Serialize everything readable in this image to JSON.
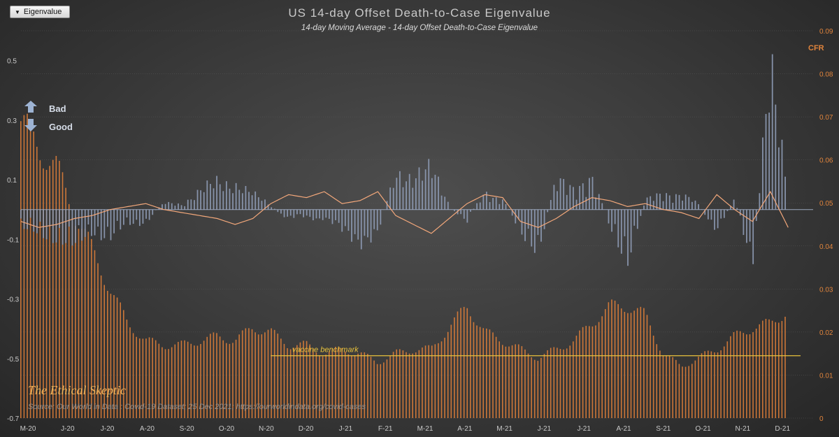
{
  "ui": {
    "dropdown_label": "Eigenvalue",
    "bad_label": "Bad",
    "good_label": "Good",
    "brand": "The Ethical Skeptic",
    "source": "Source: Our World in Data : Covid-19 Dataset; 25 Dec 2021;  https://ourworldindata.org/covid-cases"
  },
  "colors": {
    "eigen_bar": "#8e9bb5",
    "cfr_bar": "#e8823a",
    "moving_avg": "#f2a77a",
    "benchmark": "#e8c23c",
    "arrow": "#9db3d3"
  },
  "chart_data": {
    "type": "bar",
    "title": "US 14-day  Offset Death-to-Case  Eigenvalue",
    "subtitle": "14-day Moving Average - 14-day Offset Death-to-Case Eigenvalue",
    "x_tick_labels": [
      "M-20",
      "J-20",
      "J-20",
      "A-20",
      "S-20",
      "O-20",
      "N-20",
      "D-20",
      "J-21",
      "F-21",
      "M-21",
      "A-21",
      "M-21",
      "J-21",
      "J-21",
      "A-21",
      "S-21",
      "O-21",
      "N-21",
      "D-21"
    ],
    "y_left": {
      "label": "Eigenvalue",
      "ylim": [
        -0.7,
        0.6
      ],
      "ticks": [
        0.5,
        0.3,
        0.1,
        -0.1,
        -0.3,
        -0.5,
        -0.7
      ],
      "tick_labels": [
        "0.5",
        "0.3",
        "0.1",
        "-0.1",
        "-0.3",
        "-0.5",
        "-0.7"
      ]
    },
    "y_right": {
      "label": "CFR",
      "ylim": [
        0,
        0.09
      ],
      "ticks": [
        0.09,
        0.08,
        0.07,
        0.06,
        0.05,
        0.04,
        0.03,
        0.02,
        0.01,
        0
      ],
      "tick_labels": [
        "0.09",
        "0.08",
        "0.07",
        "0.06",
        "0.05",
        "0.04",
        "0.03",
        "0.02",
        "0.01",
        "0"
      ]
    },
    "annotations": [
      {
        "text": "vaccine benchmark",
        "value_cfr": 0.0145
      }
    ],
    "series": [
      {
        "name": "Eigenvalue (bars)",
        "axis": "left",
        "x_month": [
          0,
          0.5,
          1,
          1.5,
          2,
          2.5,
          3,
          3.5,
          4,
          4.5,
          5,
          5.5,
          6,
          6.5,
          7,
          7.5,
          8,
          8.5,
          9,
          9.5,
          10,
          10.5,
          11,
          11.5,
          12,
          12.5,
          13,
          13.5,
          14,
          14.5,
          15,
          15.5,
          16,
          16.5,
          17,
          17.5,
          18,
          18.5,
          19,
          19.5,
          20,
          20.5,
          21,
          21.5
        ],
        "values": [
          -0.05,
          -0.07,
          -0.08,
          -0.1,
          -0.06,
          -0.08,
          -0.04,
          -0.03,
          0.01,
          0.02,
          0.05,
          0.08,
          0.07,
          0.04,
          0.02,
          -0.03,
          -0.02,
          -0.02,
          -0.06,
          -0.09,
          -0.07,
          0.1,
          0.09,
          0.12,
          0.02,
          -0.04,
          0.05,
          0.03,
          -0.07,
          -0.11,
          0.08,
          0.06,
          0.09,
          -0.05,
          -0.14,
          0.02,
          0.05,
          0.04,
          0.01,
          -0.05,
          0.02,
          -0.15,
          0.42,
          0.03
        ]
      },
      {
        "name": "14-day Moving Average",
        "axis": "left",
        "x_month": [
          0,
          0.5,
          1,
          1.5,
          2,
          2.5,
          3,
          3.5,
          4,
          4.5,
          5,
          5.5,
          6,
          6.5,
          7,
          7.5,
          8,
          8.5,
          9,
          9.5,
          10,
          10.5,
          11,
          11.5,
          12,
          12.5,
          13,
          13.5,
          14,
          14.5,
          15,
          15.5,
          16,
          16.5,
          17,
          17.5,
          18,
          18.5,
          19,
          19.5,
          20,
          20.5,
          21,
          21.5
        ],
        "values": [
          -0.04,
          -0.06,
          -0.05,
          -0.03,
          -0.02,
          0.0,
          0.01,
          0.02,
          0.0,
          -0.01,
          -0.02,
          -0.03,
          -0.05,
          -0.03,
          0.02,
          0.05,
          0.04,
          0.06,
          0.02,
          0.03,
          0.06,
          -0.02,
          -0.05,
          -0.08,
          -0.03,
          0.02,
          0.05,
          0.04,
          -0.04,
          -0.06,
          -0.03,
          0.01,
          0.04,
          0.03,
          0.01,
          0.02,
          0.0,
          -0.01,
          -0.03,
          0.05,
          0.0,
          -0.04,
          0.06,
          -0.06
        ]
      },
      {
        "name": "CFR (bars)",
        "axis": "right",
        "x_month": [
          0,
          0.5,
          1,
          1.5,
          2,
          2.5,
          3,
          3.5,
          4,
          4.5,
          5,
          5.5,
          6,
          6.5,
          7,
          7.5,
          8,
          8.5,
          9,
          9.5,
          10,
          10.5,
          11,
          11.5,
          12,
          12.5,
          13,
          13.5,
          14,
          14.5,
          15,
          15.5,
          16,
          16.5,
          17,
          17.5,
          18,
          18.5,
          19,
          19.5,
          20,
          20.5,
          21,
          21.5
        ],
        "values": [
          0.069,
          0.063,
          0.058,
          0.048,
          0.039,
          0.03,
          0.022,
          0.018,
          0.017,
          0.017,
          0.018,
          0.019,
          0.018,
          0.021,
          0.02,
          0.017,
          0.017,
          0.015,
          0.016,
          0.015,
          0.013,
          0.015,
          0.016,
          0.016,
          0.021,
          0.026,
          0.02,
          0.018,
          0.016,
          0.014,
          0.016,
          0.018,
          0.022,
          0.026,
          0.026,
          0.024,
          0.015,
          0.012,
          0.014,
          0.016,
          0.019,
          0.021,
          0.022,
          0.025
        ]
      }
    ]
  }
}
